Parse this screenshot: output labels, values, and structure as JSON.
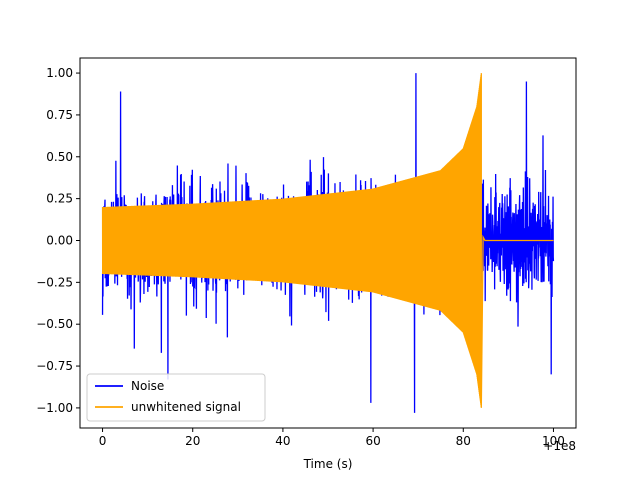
{
  "chart_data": {
    "type": "line",
    "title": "",
    "xlabel": "Time (s)",
    "ylabel": "",
    "x_offset_label": "+1e8",
    "xlim": [
      -5,
      105
    ],
    "ylim": [
      -1.12,
      1.09
    ],
    "xticks": [
      0,
      20,
      40,
      60,
      80,
      100
    ],
    "xtick_labels": [
      "0",
      "20",
      "40",
      "60",
      "80",
      "100"
    ],
    "yticks": [
      -1.0,
      -0.75,
      -0.5,
      -0.25,
      0.0,
      0.25,
      0.5,
      0.75,
      1.0
    ],
    "ytick_labels": [
      "−1.00",
      "−0.75",
      "−0.50",
      "−0.25",
      "0.00",
      "0.25",
      "0.50",
      "0.75",
      "1.00"
    ],
    "grid": false,
    "legend_position": "lower-left",
    "series": [
      {
        "name": "Noise",
        "color": "#0000ff",
        "description_of_shape": "dense random noise spanning 0 to 100 s",
        "x_range": [
          0,
          100
        ],
        "typical_amplitude": 0.5,
        "peaks": [
          {
            "x": 4,
            "y": 0.89
          },
          {
            "x": 14.5,
            "y": -0.83
          },
          {
            "x": 59.5,
            "y": -0.97
          },
          {
            "x": 69.5,
            "y": 1.0
          },
          {
            "x": 69.2,
            "y": -1.03
          },
          {
            "x": 94,
            "y": 0.95
          },
          {
            "x": 99.5,
            "y": -0.8
          }
        ]
      },
      {
        "name": "unwhitened signal",
        "color": "#ffa500",
        "description_of_shape": "chirp with envelope growing from 0.2 to 1.0, ending at about 84 s, then flat zero",
        "x_range": [
          0,
          100
        ],
        "envelope": [
          {
            "x": 0,
            "y": 0.2
          },
          {
            "x": 20,
            "y": 0.22
          },
          {
            "x": 40,
            "y": 0.25
          },
          {
            "x": 60,
            "y": 0.31
          },
          {
            "x": 75,
            "y": 0.42
          },
          {
            "x": 80,
            "y": 0.55
          },
          {
            "x": 83,
            "y": 0.8
          },
          {
            "x": 84,
            "y": 1.0
          }
        ],
        "merger_x": 84,
        "post_merger_value": 0.0
      }
    ]
  }
}
